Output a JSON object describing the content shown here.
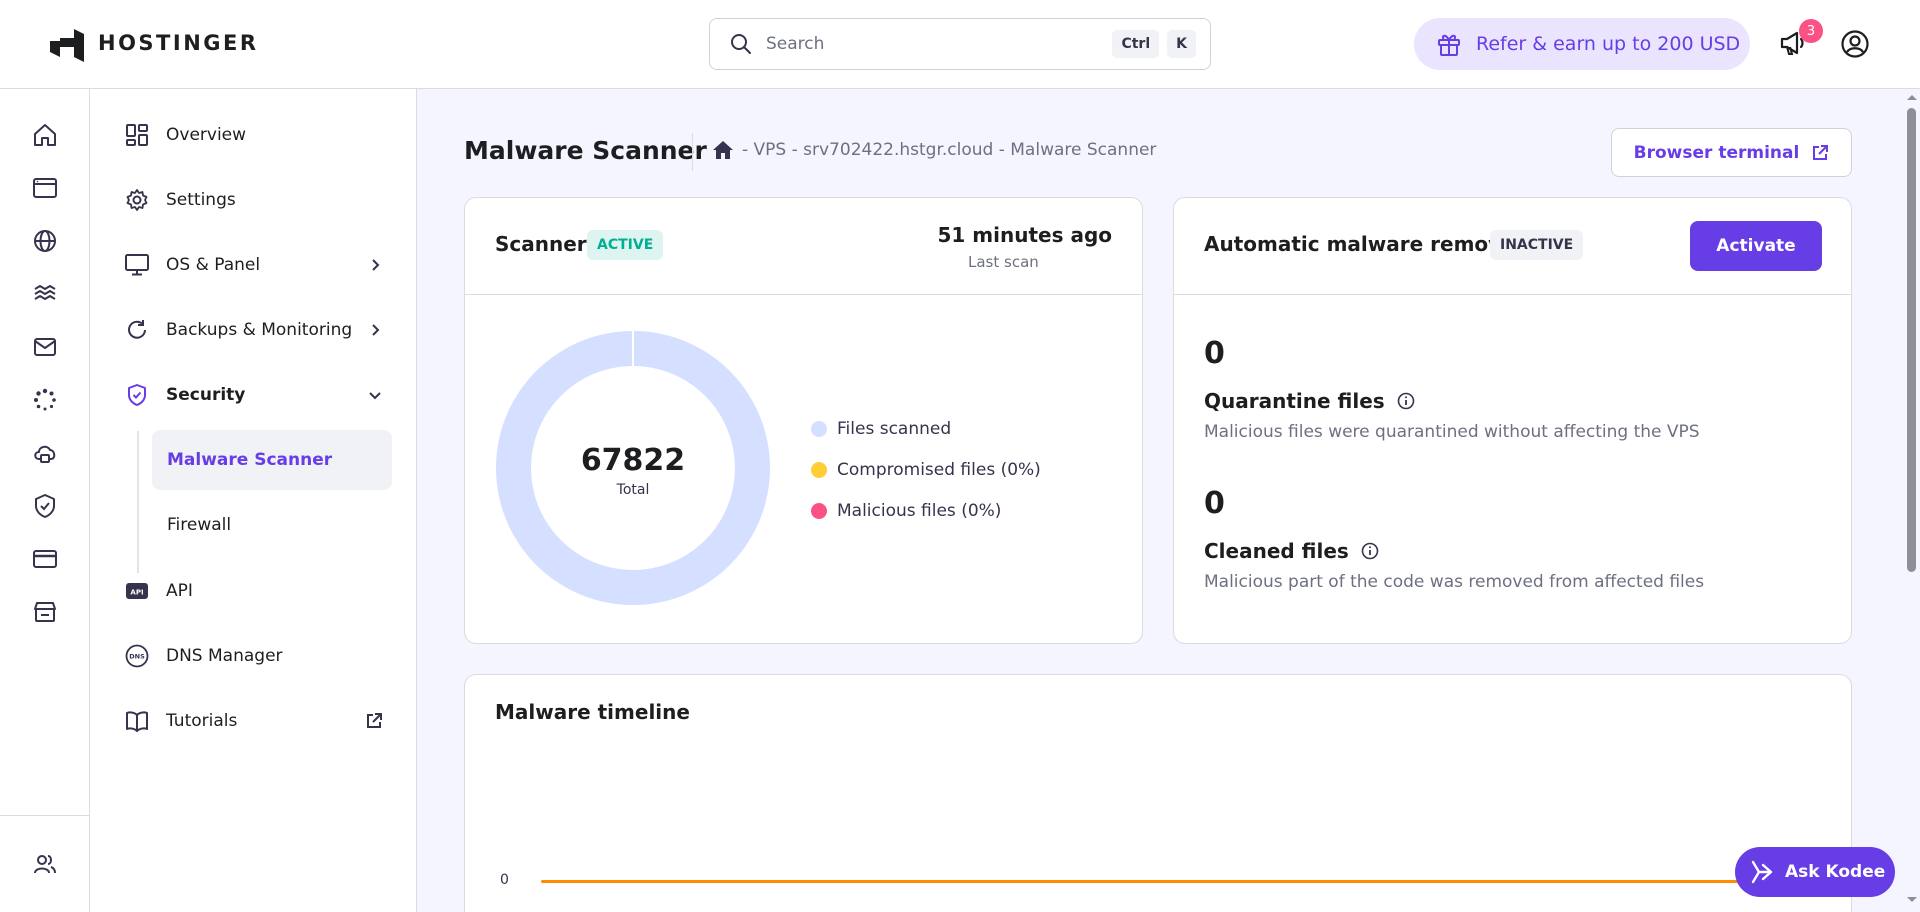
{
  "brand": {
    "name": "HOSTINGER"
  },
  "search": {
    "placeholder": "Search",
    "kbd1": "Ctrl",
    "kbd2": "K"
  },
  "refer": {
    "label": "Refer & earn up to 200 USD"
  },
  "notifications": {
    "count": "3"
  },
  "rail": [
    "home-icon",
    "website-icon",
    "globe-icon",
    "hosting-icon",
    "mail-icon",
    "loading-icon",
    "cloud-icon",
    "shield-icon",
    "billing-icon",
    "store-icon",
    "users-icon"
  ],
  "subnav": {
    "overview": "Overview",
    "settings": "Settings",
    "os_panel": "OS & Panel",
    "backups": "Backups & Monitoring",
    "security": "Security",
    "malware": "Malware Scanner",
    "firewall": "Firewall",
    "api": "API",
    "dns": "DNS Manager",
    "tutorials": "Tutorials"
  },
  "page": {
    "title": "Malware Scanner",
    "breadcrumb": "- VPS - srv702422.hstgr.cloud - Malware Scanner",
    "terminal_button": "Browser terminal"
  },
  "scanner": {
    "title": "Scanner",
    "status": "ACTIVE",
    "last_scan_time": "51 minutes ago",
    "last_scan_label": "Last scan",
    "total": "67822",
    "total_label": "Total",
    "legend": [
      {
        "label": "Files scanned",
        "color": "#d5dfff"
      },
      {
        "label": "Compromised files (0%)",
        "color": "#ffcd35"
      },
      {
        "label": "Malicious files (0%)",
        "color": "#fc5185"
      }
    ]
  },
  "chart_data": {
    "type": "pie",
    "categories": [
      "Files scanned",
      "Compromised files (0%)",
      "Malicious files (0%)"
    ],
    "values": [
      67822,
      0,
      0
    ]
  },
  "removal": {
    "title": "Automatic malware removal",
    "status": "INACTIVE",
    "activate_button": "Activate",
    "quarantine_count": "0",
    "quarantine_title": "Quarantine files",
    "quarantine_desc": "Malicious files were quarantined without affecting the VPS",
    "cleaned_count": "0",
    "cleaned_title": "Cleaned files",
    "cleaned_desc": "Malicious part of the code was removed from affected files"
  },
  "timeline": {
    "title": "Malware timeline",
    "zero_label": "0"
  },
  "kodee": {
    "label": "Ask Kodee"
  }
}
